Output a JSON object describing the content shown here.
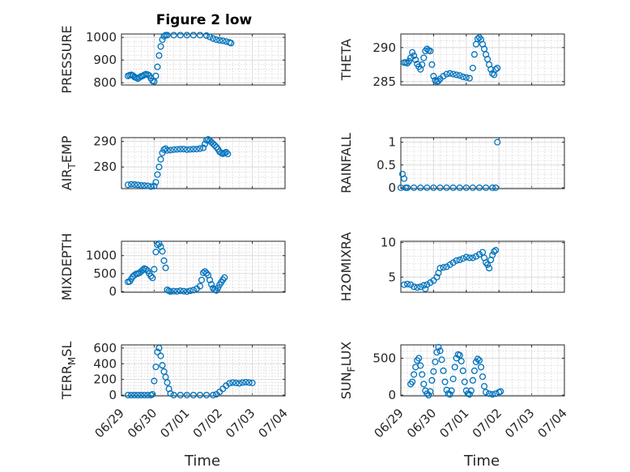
{
  "figure": {
    "title": "Figure 2 low",
    "marker_color": "#0072bd",
    "x_tick_labels": [
      "06/29",
      "06/30",
      "07/01",
      "07/02",
      "07/03",
      "07/04"
    ],
    "x_label": "Time"
  },
  "chart_data": [
    {
      "type": "scatter",
      "ylabel_main": "PRESSURE",
      "ylabel_sub": "",
      "xlim": [
        0,
        5
      ],
      "ylim": [
        790,
        1015
      ],
      "yticks": [
        800,
        900,
        1000
      ],
      "grid": true,
      "points": [
        [
          0.2,
          830
        ],
        [
          0.25,
          833
        ],
        [
          0.3,
          835
        ],
        [
          0.35,
          832
        ],
        [
          0.4,
          825
        ],
        [
          0.45,
          822
        ],
        [
          0.5,
          818
        ],
        [
          0.55,
          823
        ],
        [
          0.6,
          828
        ],
        [
          0.65,
          830
        ],
        [
          0.7,
          835
        ],
        [
          0.75,
          838
        ],
        [
          0.8,
          836
        ],
        [
          0.85,
          832
        ],
        [
          0.9,
          820
        ],
        [
          0.95,
          808
        ],
        [
          1.0,
          805
        ],
        [
          1.05,
          830
        ],
        [
          1.1,
          870
        ],
        [
          1.15,
          920
        ],
        [
          1.2,
          960
        ],
        [
          1.25,
          990
        ],
        [
          1.3,
          1005
        ],
        [
          1.35,
          1010
        ],
        [
          1.4,
          1010
        ],
        [
          1.6,
          1010
        ],
        [
          1.8,
          1010
        ],
        [
          2.0,
          1010
        ],
        [
          2.2,
          1010
        ],
        [
          2.4,
          1010
        ],
        [
          2.6,
          1008
        ],
        [
          2.7,
          1002
        ],
        [
          2.8,
          995
        ],
        [
          2.9,
          990
        ],
        [
          3.0,
          987
        ],
        [
          3.1,
          985
        ],
        [
          3.2,
          982
        ],
        [
          3.3,
          978
        ],
        [
          3.35,
          975
        ]
      ]
    },
    {
      "type": "scatter",
      "ylabel_main": "THETA",
      "ylabel_sub": "",
      "xlim": [
        0,
        5
      ],
      "ylim": [
        284.5,
        292
      ],
      "yticks": [
        285,
        290
      ],
      "grid": true,
      "points": [
        [
          0.1,
          287.8
        ],
        [
          0.15,
          287.8
        ],
        [
          0.2,
          287.7
        ],
        [
          0.25,
          288
        ],
        [
          0.3,
          288.5
        ],
        [
          0.35,
          289.3
        ],
        [
          0.4,
          288.8
        ],
        [
          0.45,
          288.2
        ],
        [
          0.5,
          287.6
        ],
        [
          0.55,
          287.2
        ],
        [
          0.6,
          286.8
        ],
        [
          0.65,
          287.5
        ],
        [
          0.7,
          288.5
        ],
        [
          0.75,
          289.5
        ],
        [
          0.8,
          289.8
        ],
        [
          0.85,
          289.6
        ],
        [
          0.9,
          289.5
        ],
        [
          0.95,
          287.5
        ],
        [
          1.0,
          285.8
        ],
        [
          1.05,
          285.2
        ],
        [
          1.1,
          285
        ],
        [
          1.15,
          285.1
        ],
        [
          1.2,
          285.4
        ],
        [
          1.3,
          285.8
        ],
        [
          1.4,
          286.1
        ],
        [
          1.5,
          286.2
        ],
        [
          1.6,
          286.1
        ],
        [
          1.7,
          286
        ],
        [
          1.8,
          285.9
        ],
        [
          1.9,
          285.7
        ],
        [
          2.0,
          285.6
        ],
        [
          2.1,
          285.5
        ],
        [
          2.2,
          287
        ],
        [
          2.25,
          289
        ],
        [
          2.3,
          290.5
        ],
        [
          2.35,
          291.3
        ],
        [
          2.4,
          291.5
        ],
        [
          2.45,
          291.2
        ],
        [
          2.5,
          290.5
        ],
        [
          2.55,
          289.8
        ],
        [
          2.6,
          289
        ],
        [
          2.65,
          288.3
        ],
        [
          2.7,
          287.5
        ],
        [
          2.75,
          286.8
        ],
        [
          2.8,
          286.2
        ],
        [
          2.85,
          286
        ],
        [
          2.9,
          286.8
        ],
        [
          2.95,
          287
        ]
      ]
    },
    {
      "type": "scatter",
      "ylabel_main": "AIR",
      "ylabel_sub": "T",
      "ylabel_tail": "EMP",
      "xlim": [
        0,
        5
      ],
      "ylim": [
        271.5,
        291.5
      ],
      "yticks": [
        280,
        290
      ],
      "grid": true,
      "points": [
        [
          0.2,
          273
        ],
        [
          0.3,
          273.2
        ],
        [
          0.4,
          273.1
        ],
        [
          0.5,
          273
        ],
        [
          0.6,
          272.8
        ],
        [
          0.7,
          272.7
        ],
        [
          0.8,
          272.6
        ],
        [
          0.9,
          272.3
        ],
        [
          1.0,
          272.5
        ],
        [
          1.05,
          274
        ],
        [
          1.1,
          277
        ],
        [
          1.15,
          280
        ],
        [
          1.2,
          283
        ],
        [
          1.25,
          285.5
        ],
        [
          1.3,
          286.8
        ],
        [
          1.35,
          287.2
        ],
        [
          1.4,
          286.5
        ],
        [
          1.5,
          286.6
        ],
        [
          1.6,
          286.8
        ],
        [
          1.7,
          286.9
        ],
        [
          1.8,
          287
        ],
        [
          1.9,
          287
        ],
        [
          2.0,
          286.8
        ],
        [
          2.1,
          286.9
        ],
        [
          2.2,
          287
        ],
        [
          2.3,
          287
        ],
        [
          2.4,
          287.2
        ],
        [
          2.5,
          287.5
        ],
        [
          2.55,
          289
        ],
        [
          2.6,
          290.5
        ],
        [
          2.65,
          290.8
        ],
        [
          2.7,
          290.3
        ],
        [
          2.75,
          289.7
        ],
        [
          2.8,
          289.1
        ],
        [
          2.85,
          288.5
        ],
        [
          2.9,
          287.8
        ],
        [
          2.95,
          287
        ],
        [
          3.0,
          286
        ],
        [
          3.05,
          285.5
        ],
        [
          3.1,
          285.2
        ],
        [
          3.15,
          285.5
        ],
        [
          3.2,
          285.8
        ],
        [
          3.25,
          285.1
        ]
      ]
    },
    {
      "type": "scatter",
      "ylabel_main": "RAINFALL",
      "ylabel_sub": "",
      "xlim": [
        0,
        5
      ],
      "ylim": [
        -0.02,
        1.1
      ],
      "yticks": [
        0,
        0.5,
        1
      ],
      "grid": true,
      "points": [
        [
          0.0,
          0
        ],
        [
          0.05,
          0.3
        ],
        [
          0.1,
          0.2
        ],
        [
          0.15,
          0
        ],
        [
          0.2,
          0
        ],
        [
          0.4,
          0
        ],
        [
          0.6,
          0
        ],
        [
          0.8,
          0
        ],
        [
          1.0,
          0
        ],
        [
          1.2,
          0
        ],
        [
          1.4,
          0
        ],
        [
          1.6,
          0
        ],
        [
          1.8,
          0
        ],
        [
          2.0,
          0
        ],
        [
          2.2,
          0
        ],
        [
          2.4,
          0
        ],
        [
          2.6,
          0
        ],
        [
          2.8,
          0
        ],
        [
          2.9,
          0
        ],
        [
          2.95,
          1
        ]
      ]
    },
    {
      "type": "scatter",
      "ylabel_main": "MIXDEPTH",
      "ylabel_sub": "",
      "xlim": [
        0,
        5
      ],
      "ylim": [
        -20,
        1400
      ],
      "yticks": [
        0,
        500,
        1000
      ],
      "grid": true,
      "points": [
        [
          0.2,
          270
        ],
        [
          0.25,
          280
        ],
        [
          0.3,
          350
        ],
        [
          0.35,
          420
        ],
        [
          0.4,
          460
        ],
        [
          0.45,
          490
        ],
        [
          0.5,
          500
        ],
        [
          0.55,
          520
        ],
        [
          0.6,
          560
        ],
        [
          0.65,
          600
        ],
        [
          0.7,
          640
        ],
        [
          0.75,
          620
        ],
        [
          0.8,
          580
        ],
        [
          0.85,
          500
        ],
        [
          0.9,
          430
        ],
        [
          0.95,
          380
        ],
        [
          1.0,
          620
        ],
        [
          1.05,
          1100
        ],
        [
          1.1,
          1300
        ],
        [
          1.15,
          1330
        ],
        [
          1.2,
          1250
        ],
        [
          1.25,
          1120
        ],
        [
          1.3,
          860
        ],
        [
          1.35,
          660
        ],
        [
          1.4,
          50
        ],
        [
          1.45,
          20
        ],
        [
          1.5,
          0
        ],
        [
          1.6,
          10
        ],
        [
          1.7,
          5
        ],
        [
          1.8,
          20
        ],
        [
          1.9,
          10
        ],
        [
          2.0,
          0
        ],
        [
          2.1,
          20
        ],
        [
          2.2,
          40
        ],
        [
          2.3,
          80
        ],
        [
          2.4,
          150
        ],
        [
          2.45,
          320
        ],
        [
          2.5,
          520
        ],
        [
          2.55,
          560
        ],
        [
          2.6,
          510
        ],
        [
          2.65,
          460
        ],
        [
          2.7,
          320
        ],
        [
          2.75,
          200
        ],
        [
          2.8,
          90
        ],
        [
          2.85,
          50
        ],
        [
          2.9,
          30
        ],
        [
          2.95,
          100
        ],
        [
          3.0,
          190
        ],
        [
          3.05,
          260
        ],
        [
          3.1,
          330
        ],
        [
          3.15,
          390
        ]
      ]
    },
    {
      "type": "scatter",
      "ylabel_main": "H2OMIXRA",
      "ylabel_sub": "",
      "xlim": [
        0,
        5
      ],
      "ylim": [
        2.8,
        10.2
      ],
      "yticks": [
        5,
        10
      ],
      "grid": true,
      "points": [
        [
          0.1,
          3.9
        ],
        [
          0.2,
          4.0
        ],
        [
          0.3,
          3.9
        ],
        [
          0.4,
          3.6
        ],
        [
          0.5,
          3.5
        ],
        [
          0.6,
          3.6
        ],
        [
          0.7,
          3.8
        ],
        [
          0.75,
          3.3
        ],
        [
          0.8,
          3.9
        ],
        [
          0.9,
          4.2
        ],
        [
          1.0,
          4.5
        ],
        [
          1.1,
          5.0
        ],
        [
          1.15,
          5.6
        ],
        [
          1.2,
          6.3
        ],
        [
          1.3,
          6.4
        ],
        [
          1.4,
          6.5
        ],
        [
          1.5,
          6.8
        ],
        [
          1.6,
          7.1
        ],
        [
          1.7,
          7.4
        ],
        [
          1.8,
          7.5
        ],
        [
          1.9,
          7.7
        ],
        [
          2.0,
          7.9
        ],
        [
          2.1,
          7.8
        ],
        [
          2.2,
          7.8
        ],
        [
          2.3,
          8.0
        ],
        [
          2.4,
          8.3
        ],
        [
          2.5,
          8.6
        ],
        [
          2.55,
          7.8
        ],
        [
          2.6,
          7.1
        ],
        [
          2.65,
          6.8
        ],
        [
          2.7,
          6.3
        ],
        [
          2.75,
          7.5
        ],
        [
          2.8,
          8.2
        ],
        [
          2.85,
          8.7
        ],
        [
          2.9,
          8.9
        ]
      ]
    },
    {
      "type": "scatter",
      "ylabel_main": "TERR",
      "ylabel_sub": "M",
      "ylabel_tail": "SL",
      "xlim": [
        0,
        5
      ],
      "ylim": [
        -10,
        640
      ],
      "yticks": [
        0,
        200,
        400,
        600
      ],
      "grid": true,
      "points": [
        [
          0.2,
          0
        ],
        [
          0.3,
          0
        ],
        [
          0.4,
          0
        ],
        [
          0.5,
          0
        ],
        [
          0.6,
          0
        ],
        [
          0.7,
          0
        ],
        [
          0.8,
          0
        ],
        [
          0.9,
          0
        ],
        [
          0.95,
          10
        ],
        [
          1.0,
          180
        ],
        [
          1.05,
          360
        ],
        [
          1.1,
          550
        ],
        [
          1.15,
          600
        ],
        [
          1.2,
          500
        ],
        [
          1.25,
          380
        ],
        [
          1.3,
          300
        ],
        [
          1.35,
          230
        ],
        [
          1.4,
          160
        ],
        [
          1.45,
          80
        ],
        [
          1.5,
          20
        ],
        [
          1.6,
          0
        ],
        [
          1.8,
          0
        ],
        [
          2.0,
          0
        ],
        [
          2.2,
          0
        ],
        [
          2.4,
          0
        ],
        [
          2.6,
          0
        ],
        [
          2.8,
          0
        ],
        [
          2.9,
          10
        ],
        [
          3.0,
          40
        ],
        [
          3.1,
          80
        ],
        [
          3.2,
          120
        ],
        [
          3.3,
          150
        ],
        [
          3.4,
          160
        ],
        [
          3.5,
          155
        ],
        [
          3.6,
          150
        ],
        [
          3.7,
          160
        ],
        [
          3.8,
          165
        ],
        [
          3.9,
          160
        ],
        [
          4.0,
          155
        ]
      ]
    },
    {
      "type": "scatter",
      "ylabel_main": "SUN",
      "ylabel_sub": "F",
      "ylabel_tail": "LUX",
      "xlim": [
        0,
        5
      ],
      "ylim": [
        -10,
        680
      ],
      "yticks": [
        0,
        500
      ],
      "grid": true,
      "points": [
        [
          0.3,
          150
        ],
        [
          0.35,
          180
        ],
        [
          0.4,
          280
        ],
        [
          0.45,
          380
        ],
        [
          0.5,
          470
        ],
        [
          0.55,
          500
        ],
        [
          0.6,
          400
        ],
        [
          0.65,
          280
        ],
        [
          0.7,
          150
        ],
        [
          0.75,
          60
        ],
        [
          0.8,
          20
        ],
        [
          0.85,
          0
        ],
        [
          0.9,
          50
        ],
        [
          0.95,
          200
        ],
        [
          1.0,
          320
        ],
        [
          1.05,
          450
        ],
        [
          1.1,
          580
        ],
        [
          1.15,
          650
        ],
        [
          1.2,
          600
        ],
        [
          1.25,
          480
        ],
        [
          1.3,
          330
        ],
        [
          1.35,
          180
        ],
        [
          1.4,
          70
        ],
        [
          1.45,
          20
        ],
        [
          1.5,
          10
        ],
        [
          1.55,
          60
        ],
        [
          1.6,
          220
        ],
        [
          1.65,
          380
        ],
        [
          1.7,
          500
        ],
        [
          1.75,
          550
        ],
        [
          1.8,
          540
        ],
        [
          1.85,
          460
        ],
        [
          1.9,
          330
        ],
        [
          1.95,
          180
        ],
        [
          2.0,
          60
        ],
        [
          2.05,
          20
        ],
        [
          2.1,
          10
        ],
        [
          2.15,
          60
        ],
        [
          2.2,
          200
        ],
        [
          2.25,
          330
        ],
        [
          2.3,
          450
        ],
        [
          2.35,
          490
        ],
        [
          2.4,
          470
        ],
        [
          2.45,
          380
        ],
        [
          2.5,
          250
        ],
        [
          2.55,
          120
        ],
        [
          2.6,
          40
        ],
        [
          2.7,
          20
        ],
        [
          2.8,
          10
        ],
        [
          2.9,
          20
        ],
        [
          3.0,
          40
        ],
        [
          3.05,
          50
        ]
      ]
    }
  ]
}
